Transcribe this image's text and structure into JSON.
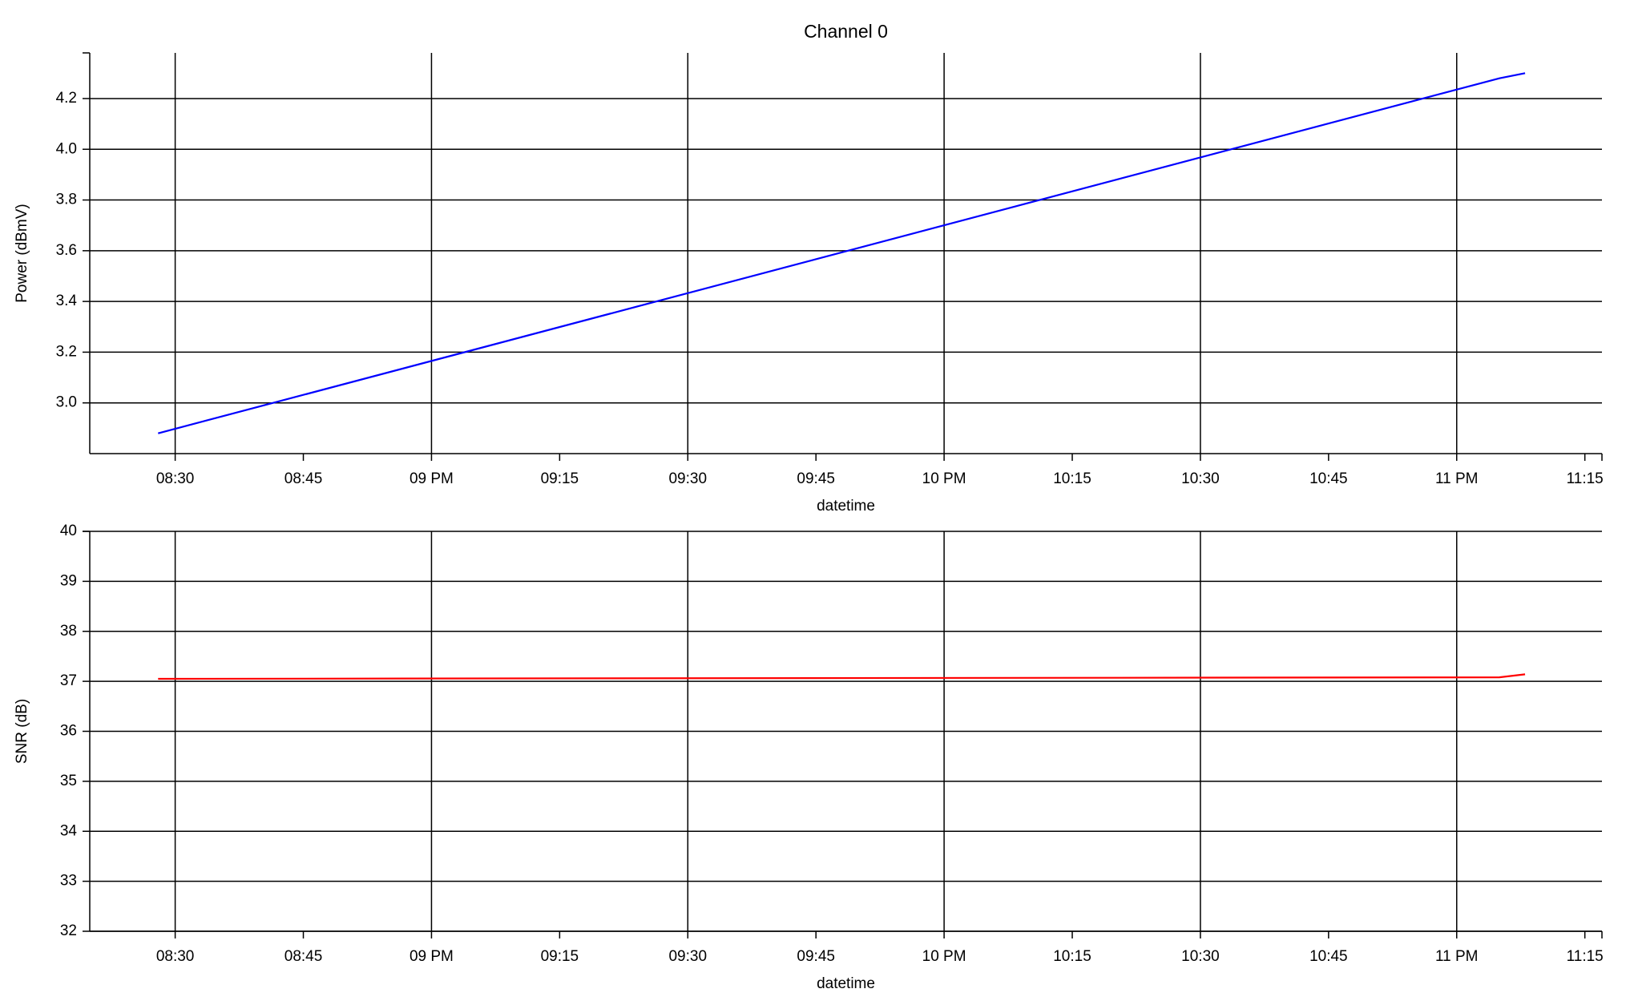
{
  "chart_data": [
    {
      "type": "line",
      "title": "Channel 0",
      "xlabel": "datetime",
      "ylabel": "Power (dBmV)",
      "x": [
        "20:28",
        "23:05",
        "23:08"
      ],
      "series": [
        {
          "name": "Power",
          "color": "#0000ff",
          "values": [
            2.88,
            4.28,
            4.3
          ]
        }
      ],
      "xlim": [
        "20:20",
        "23:17"
      ],
      "xticks": [
        {
          "value": "20:30",
          "label": "08:30"
        },
        {
          "value": "20:45",
          "label": "08:45"
        },
        {
          "value": "21:00",
          "label": "09 PM"
        },
        {
          "value": "21:15",
          "label": "09:15"
        },
        {
          "value": "21:30",
          "label": "09:30"
        },
        {
          "value": "21:45",
          "label": "09:45"
        },
        {
          "value": "22:00",
          "label": "10 PM"
        },
        {
          "value": "22:15",
          "label": "10:15"
        },
        {
          "value": "22:30",
          "label": "10:30"
        },
        {
          "value": "22:45",
          "label": "10:45"
        },
        {
          "value": "23:00",
          "label": "11 PM"
        },
        {
          "value": "23:15",
          "label": "11:15"
        }
      ],
      "ylim": [
        2.8,
        4.38
      ],
      "yticks": [
        {
          "value": 3.0,
          "label": "3.0"
        },
        3.2,
        3.4,
        3.6,
        3.8,
        {
          "value": 4.0,
          "label": "4.0"
        },
        4.2
      ],
      "grid": true
    },
    {
      "type": "line",
      "xlabel": "datetime",
      "ylabel": "SNR (dB)",
      "x": [
        "20:28",
        "23:05",
        "23:08"
      ],
      "series": [
        {
          "name": "SNR",
          "color": "#ff0000",
          "values": [
            37.05,
            37.08,
            37.14
          ]
        }
      ],
      "xlim": [
        "20:20",
        "23:17"
      ],
      "xticks": [
        {
          "value": "20:30",
          "label": "08:30"
        },
        {
          "value": "20:45",
          "label": "08:45"
        },
        {
          "value": "21:00",
          "label": "09 PM"
        },
        {
          "value": "21:15",
          "label": "09:15"
        },
        {
          "value": "21:30",
          "label": "09:30"
        },
        {
          "value": "21:45",
          "label": "09:45"
        },
        {
          "value": "22:00",
          "label": "10 PM"
        },
        {
          "value": "22:15",
          "label": "10:15"
        },
        {
          "value": "22:30",
          "label": "10:30"
        },
        {
          "value": "22:45",
          "label": "10:45"
        },
        {
          "value": "23:00",
          "label": "11 PM"
        },
        {
          "value": "23:15",
          "label": "11:15"
        }
      ],
      "ylim": [
        32,
        40
      ],
      "yticks": [
        32,
        33,
        34,
        35,
        36,
        37,
        38,
        39,
        40
      ],
      "grid": true
    }
  ]
}
